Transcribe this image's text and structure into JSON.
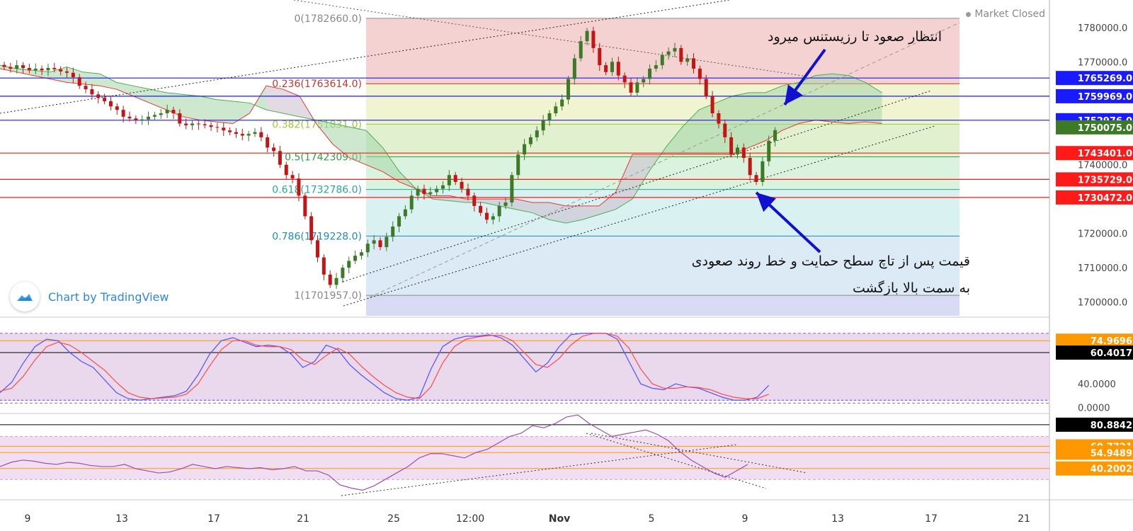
{
  "status": {
    "text": "Market Closed"
  },
  "watermark": {
    "text": "Chart by TradingView"
  },
  "annotations": {
    "top": "انتظار صعود تا رزیستنس میرود",
    "bottom_line1": "قیمت پس از تاچ سطح حمایت و خط روند صعودی",
    "bottom_line2": "به سمت بالا بازگشت"
  },
  "colors": {
    "up": "#3d7a28",
    "down": "#c41414",
    "ichimoku_green": "#4caf50",
    "ichimoku_red": "#e53935",
    "stoch_k": "#5151ff",
    "stoch_d": "#ff4a4a",
    "rsi": "#9c4fb0",
    "band_purple": "#e6d2ea",
    "axis_label_blue": "#1a1aff",
    "axis_label_red": "#ff1a1a",
    "axis_label_orange": "#ff9800"
  },
  "chart_data": [
    {
      "type": "candlestick",
      "name": "price",
      "ylim": [
        1696000,
        1788000
      ],
      "x_ticks": [
        "9",
        "13",
        "17",
        "21",
        "25",
        "12:00",
        "Nov",
        "5",
        "9",
        "13",
        "17",
        "21"
      ],
      "y_ticks": [
        1700000,
        1710000,
        1720000,
        1730000,
        1740000,
        1750000,
        1760000,
        1770000,
        1780000
      ],
      "y_tick_labels": [
        "1700000.0",
        "1710000.0",
        "1720000.0",
        "1730000.0",
        "1740000.0",
        "1750000.0",
        "1760000.0",
        "1770000.0",
        "1780000.0"
      ],
      "fibonacci": [
        {
          "label": "0(1782660.0)",
          "level": 1782660,
          "color": "#888888"
        },
        {
          "label": "0.236(1763614.0)",
          "level": 1763614,
          "color": "#c0392b"
        },
        {
          "label": "0.382(1751831.0)",
          "level": 1751831,
          "color": "#9acd32"
        },
        {
          "label": "0.5(1742309.0)",
          "level": 1742309,
          "color": "#2ea043"
        },
        {
          "label": "0.618(1732786.0)",
          "level": 1732786,
          "color": "#26a69a"
        },
        {
          "label": "0.786(1719228.0)",
          "level": 1719228,
          "color": "#1f8bc0"
        },
        {
          "label": "1(1701957.0)",
          "level": 1701957,
          "color": "#888888"
        }
      ],
      "horizontal_levels": [
        {
          "value": 1765269,
          "label": "1765269.0",
          "color": "#1a1aff"
        },
        {
          "value": 1759969,
          "label": "1759969.0",
          "color": "#1a1aff"
        },
        {
          "value": 1752976,
          "label": "1752976.0",
          "color": "#1a1aff"
        },
        {
          "value": 1743401,
          "label": "1743401.0",
          "color": "#ff1a1a"
        },
        {
          "value": 1735729,
          "label": "1735729.0",
          "color": "#ff1a1a"
        },
        {
          "value": 1730472,
          "label": "1730472.0",
          "color": "#ff1a1a"
        }
      ],
      "last_price": {
        "value": 1750075,
        "label": "1750075.0",
        "color": "#3d7a28"
      },
      "closes": [
        1768500,
        1768000,
        1769000,
        1768200,
        1767500,
        1768000,
        1767500,
        1768200,
        1767800,
        1767200,
        1766800,
        1765500,
        1763000,
        1762000,
        1760500,
        1759500,
        1758500,
        1757000,
        1756000,
        1754000,
        1753500,
        1753000,
        1753200,
        1754000,
        1754500,
        1755000,
        1756000,
        1755000,
        1752000,
        1751500,
        1752000,
        1751800,
        1751500,
        1751000,
        1750800,
        1750000,
        1749500,
        1749000,
        1748500,
        1749000,
        1749500,
        1748000,
        1745000,
        1744000,
        1740000,
        1737000,
        1736000,
        1731000,
        1725000,
        1718000,
        1713000,
        1708000,
        1705000,
        1707000,
        1710000,
        1712000,
        1713500,
        1714500,
        1717000,
        1718000,
        1716000,
        1719000,
        1722000,
        1725000,
        1727000,
        1731000,
        1733000,
        1731500,
        1732000,
        1733000,
        1734000,
        1737000,
        1735000,
        1733000,
        1731000,
        1728000,
        1726000,
        1724000,
        1725000,
        1728000,
        1729000,
        1737000,
        1743000,
        1746000,
        1748000,
        1750000,
        1753000,
        1755000,
        1757000,
        1759000,
        1765000,
        1771000,
        1776000,
        1779000,
        1774000,
        1769000,
        1767000,
        1770000,
        1766000,
        1764000,
        1761000,
        1764000,
        1765000,
        1768000,
        1769000,
        1772000,
        1773000,
        1774000,
        1770000,
        1771000,
        1768000,
        1765000,
        1760000,
        1755000,
        1752000,
        1748000,
        1743000,
        1745000,
        1742000,
        1737000,
        1735000,
        1741000,
        1747000,
        1750075
      ],
      "ichimoku_span_a": [
        1769000,
        1768000,
        1767500,
        1767000,
        1768500,
        1767000,
        1766500,
        1764000,
        1763000,
        1762000,
        1761000,
        1760500,
        1760000,
        1759000,
        1758500,
        1758000,
        1756000,
        1755000,
        1754000,
        1753000,
        1752000,
        1751000,
        1750000,
        1745000,
        1738000,
        1733000,
        1730000,
        1729500,
        1729000,
        1729000,
        1728000,
        1727000,
        1726000,
        1724000,
        1723000,
        1724000,
        1725500,
        1727000,
        1730000,
        1738000,
        1745000,
        1751000,
        1756000,
        1758000,
        1760000,
        1761000,
        1761000,
        1763000,
        1764000,
        1766000,
        1766500,
        1766000,
        1764000,
        1761000,
        1758000,
        1753000
      ],
      "ichimoku_span_b": [
        1768000,
        1767000,
        1766000,
        1765000,
        1764000,
        1763500,
        1763000,
        1762000,
        1760000,
        1758000,
        1756000,
        1754000,
        1753000,
        1752500,
        1752000,
        1755000,
        1763000,
        1762000,
        1760000,
        1752000,
        1746000,
        1742000,
        1740000,
        1738000,
        1735000,
        1733000,
        1731000,
        1731000,
        1730000,
        1730000,
        1730000,
        1730000,
        1729000,
        1729000,
        1728000,
        1728000,
        1728000,
        1732000,
        1743000,
        1743000,
        1743000,
        1743000,
        1743000,
        1743000,
        1743000,
        1745000,
        1747000,
        1750000,
        1752000,
        1753000,
        1752500,
        1752000,
        1752500,
        1752000
      ]
    },
    {
      "type": "line",
      "name": "stochastic",
      "ylim": [
        -8,
        112
      ],
      "reference_lines": [
        80,
        20
      ],
      "series": [
        {
          "values": [
            18,
            32,
            58,
            80,
            90,
            88,
            72,
            60,
            52,
            35,
            18,
            10,
            8,
            10,
            12,
            14,
            20,
            42,
            70,
            88,
            92,
            86,
            80,
            82,
            80,
            70,
            52,
            60,
            82,
            76,
            56,
            42,
            30,
            18,
            10,
            8,
            12,
            50,
            80,
            90,
            94,
            94,
            96,
            92,
            82,
            64,
            46,
            58,
            80,
            96,
            98,
            98,
            98,
            90,
            60,
            30,
            24,
            22,
            30,
            26,
            24,
            18,
            12,
            8,
            8,
            12,
            28
          ],
          "color": "#5151ff"
        },
        {
          "values": [
            20,
            24,
            40,
            62,
            80,
            86,
            82,
            72,
            60,
            48,
            32,
            18,
            12,
            10,
            11,
            12,
            16,
            30,
            54,
            76,
            88,
            88,
            82,
            80,
            80,
            76,
            62,
            56,
            68,
            78,
            70,
            54,
            40,
            28,
            18,
            12,
            10,
            26,
            58,
            80,
            90,
            93,
            95,
            95,
            88,
            72,
            56,
            52,
            64,
            82,
            94,
            98,
            98,
            94,
            78,
            50,
            30,
            24,
            24,
            26,
            25,
            22,
            16,
            12,
            10,
            10,
            16
          ],
          "color": "#ff4a4a"
        }
      ]
    },
    {
      "type": "line",
      "name": "rsi",
      "ylim": [
        15,
        90
      ],
      "reference_lines": [
        70,
        30
      ],
      "series": [
        {
          "values": [
            42,
            46,
            48,
            47,
            45,
            44,
            46,
            45,
            43,
            42,
            42,
            44,
            40,
            38,
            36,
            37,
            40,
            44,
            42,
            40,
            42,
            41,
            40,
            41,
            39,
            40,
            42,
            38,
            38,
            34,
            25,
            22,
            20,
            24,
            30,
            36,
            42,
            50,
            54,
            54,
            52,
            50,
            55,
            58,
            64,
            70,
            73,
            80,
            78,
            82,
            88,
            90,
            82,
            76,
            70,
            72,
            74,
            76,
            72,
            66,
            56,
            48,
            42,
            36,
            32,
            38,
            44
          ],
          "color": "#9c4fb0"
        }
      ],
      "axis_labels": [
        {
          "label": "80.8842",
          "color": "#000000"
        },
        {
          "label": "60.7721",
          "color": "#ff9800"
        },
        {
          "label": "54.9489",
          "color": "#ff9800"
        },
        {
          "label": "40.2002",
          "color": "#ff9800"
        }
      ]
    }
  ],
  "stoch_axis": {
    "ticks": [
      "40.0000",
      "0.0000"
    ],
    "labels": [
      {
        "label": "74.9696",
        "color": "#ff9800"
      },
      {
        "label": "60.4017",
        "color": "#000000"
      }
    ]
  }
}
